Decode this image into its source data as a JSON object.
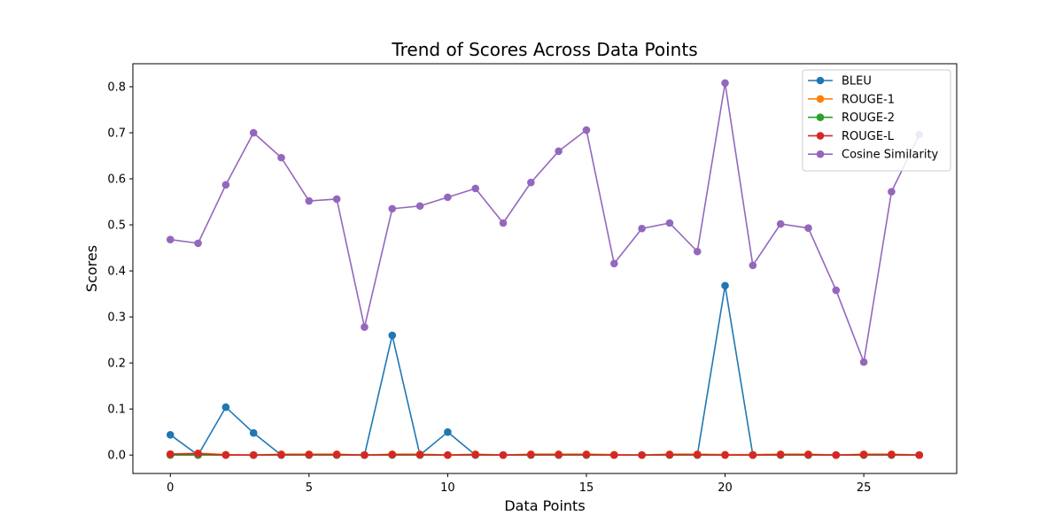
{
  "chart_data": {
    "type": "line",
    "title": "Trend of Scores Across Data Points",
    "xlabel": "Data Points",
    "ylabel": "Scores",
    "xlim": [
      -1.35,
      28.35
    ],
    "ylim": [
      -0.04,
      0.85
    ],
    "xticks": [
      0,
      5,
      10,
      15,
      20,
      25
    ],
    "yticks": [
      0.0,
      0.1,
      0.2,
      0.3,
      0.4,
      0.5,
      0.6,
      0.7,
      0.8
    ],
    "grid": false,
    "legend": "top-right",
    "x": [
      0,
      1,
      2,
      3,
      4,
      5,
      6,
      7,
      8,
      9,
      10,
      11,
      12,
      13,
      14,
      15,
      16,
      17,
      18,
      19,
      20,
      21,
      22,
      23,
      24,
      25,
      26,
      27
    ],
    "series": [
      {
        "name": "BLEU",
        "color": "#1f77b4",
        "values": [
          0.044,
          0.0,
          0.104,
          0.048,
          0.0,
          0.0,
          0.0,
          0.0,
          0.26,
          0.0,
          0.05,
          0.0,
          0.0,
          0.0,
          0.0,
          0.0,
          0.0,
          0.0,
          0.0,
          0.0,
          0.368,
          0.0,
          0.0,
          0.0,
          0.0,
          0.0,
          0.0,
          0.0
        ]
      },
      {
        "name": "ROUGE-1",
        "color": "#ff7f0e",
        "values": [
          0.002,
          0.004,
          0.001,
          0.0,
          0.002,
          0.002,
          0.002,
          0.0,
          0.002,
          0.002,
          0.0,
          0.002,
          0.0,
          0.002,
          0.002,
          0.002,
          0.001,
          0.0,
          0.002,
          0.002,
          0.001,
          0.001,
          0.002,
          0.002,
          0.0,
          0.002,
          0.002,
          0.0
        ]
      },
      {
        "name": "ROUGE-2",
        "color": "#2ca02c",
        "values": [
          0.0,
          0.0,
          0.0,
          0.0,
          0.0,
          0.0,
          0.0,
          0.0,
          0.0,
          0.0,
          0.0,
          0.0,
          0.0,
          0.0,
          0.0,
          0.0,
          0.0,
          0.0,
          0.0,
          0.0,
          0.0,
          0.0,
          0.0,
          0.0,
          0.0,
          0.0,
          0.0,
          0.0
        ]
      },
      {
        "name": "ROUGE-L",
        "color": "#d62728",
        "values": [
          0.002,
          0.003,
          0.0,
          0.0,
          0.001,
          0.001,
          0.001,
          0.0,
          0.001,
          0.001,
          0.0,
          0.001,
          0.0,
          0.001,
          0.001,
          0.001,
          0.0,
          0.0,
          0.001,
          0.001,
          0.0,
          0.0,
          0.001,
          0.001,
          0.0,
          0.001,
          0.001,
          0.0
        ]
      },
      {
        "name": "Cosine Similarity",
        "color": "#9467bd",
        "values": [
          0.468,
          0.46,
          0.587,
          0.7,
          0.646,
          0.552,
          0.556,
          0.278,
          0.535,
          0.541,
          0.56,
          0.579,
          0.504,
          0.592,
          0.66,
          0.706,
          0.416,
          0.492,
          0.504,
          0.442,
          0.808,
          0.412,
          0.502,
          0.493,
          0.358,
          0.202,
          0.572,
          0.696
        ]
      }
    ]
  }
}
